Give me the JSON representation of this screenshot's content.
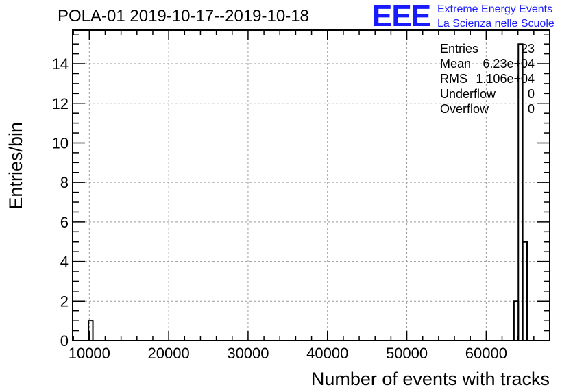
{
  "chart_data": {
    "type": "histogram",
    "title": "POLA-01 2019-10-17--2019-10-18",
    "xlabel": "Number of events with tracks",
    "ylabel": "Entries/bin",
    "xlim": [
      7900,
      68000
    ],
    "ylim": [
      0,
      15.7
    ],
    "xticks": [
      10000,
      20000,
      30000,
      40000,
      50000,
      60000
    ],
    "yticks": [
      0,
      2,
      4,
      6,
      8,
      10,
      12,
      14
    ],
    "grid": true,
    "bins": [
      {
        "x0": 9900,
        "x1": 10450,
        "count": 1
      },
      {
        "x0": 63500,
        "x1": 64050,
        "count": 2
      },
      {
        "x0": 64050,
        "x1": 64600,
        "count": 15
      },
      {
        "x0": 64600,
        "x1": 65150,
        "count": 5
      }
    ]
  },
  "stats": {
    "rows": [
      {
        "label": "Entries",
        "value": "23"
      },
      {
        "label": "Mean",
        "value": "6.23e+04"
      },
      {
        "label": "RMS",
        "value": "1.106e+04"
      },
      {
        "label": "Underflow",
        "value": "0"
      },
      {
        "label": "Overflow",
        "value": "0"
      }
    ]
  },
  "logo": {
    "text": "EEE",
    "line1": "Extreme Energy Events",
    "line2": "La Scienza nelle Scuole",
    "color": "#1a1aff"
  }
}
